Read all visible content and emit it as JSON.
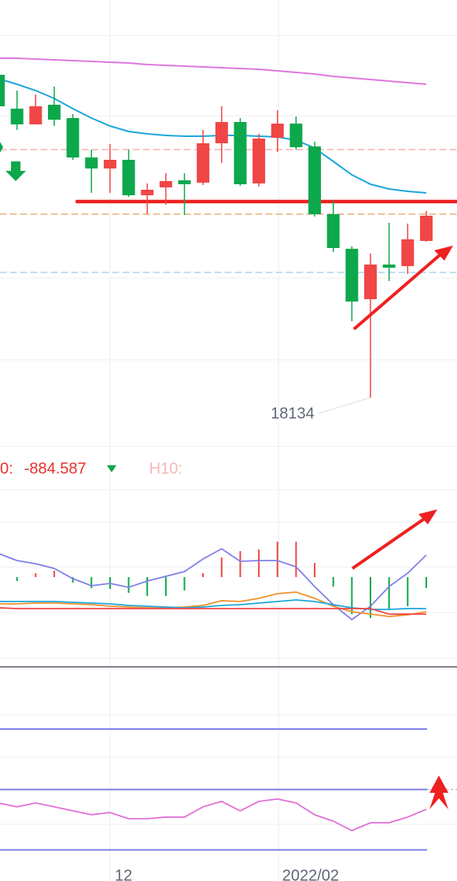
{
  "chart_data": [
    {
      "type": "candlestick",
      "ylim": [
        18014,
        19144
      ],
      "up_color": "#f04646",
      "down_color": "#0ca84b",
      "open": [
        18954,
        18868,
        18828,
        18878,
        18844,
        18744,
        18716,
        18738,
        18648,
        18668,
        18686,
        18680,
        18780,
        18834,
        18678,
        18794,
        18830,
        18772,
        18600,
        18512,
        18384,
        18472,
        18468,
        18532
      ],
      "high": [
        18964,
        18914,
        18904,
        18924,
        18854,
        18764,
        18778,
        18764,
        18678,
        18704,
        18704,
        18814,
        18874,
        18844,
        18804,
        18864,
        18848,
        18784,
        18634,
        18518,
        18500,
        18578,
        18576,
        18608
      ],
      "low": [
        18864,
        18814,
        18828,
        18824,
        18738,
        18654,
        18654,
        18644,
        18600,
        18624,
        18598,
        18674,
        18730,
        18672,
        18670,
        18758,
        18764,
        18594,
        18504,
        18328,
        18134,
        18430,
        18448,
        18530
      ],
      "close": [
        18874,
        18828,
        18874,
        18840,
        18744,
        18716,
        18738,
        18648,
        18662,
        18684,
        18676,
        18780,
        18834,
        18676,
        18792,
        18830,
        18770,
        18600,
        18514,
        18378,
        18472,
        18464,
        18536,
        18596
      ],
      "series": [
        {
          "color": "#de78de",
          "values": [
            18996,
            18996,
            18994,
            18992,
            18990,
            18988,
            18986,
            18984,
            18980,
            18978,
            18976,
            18974,
            18972,
            18970,
            18968,
            18964,
            18960,
            18956,
            18950,
            18946,
            18942,
            18938,
            18934,
            18930
          ]
        },
        {
          "color": "#1ea6dc",
          "values": [
            18944,
            18930,
            18914,
            18894,
            18868,
            18844,
            18824,
            18810,
            18804,
            18800,
            18798,
            18798,
            18800,
            18800,
            18798,
            18796,
            18788,
            18768,
            18734,
            18700,
            18676,
            18664,
            18658,
            18654
          ]
        }
      ],
      "levels": [
        {
          "value": 18764,
          "color": "#f2a4a4",
          "dashed": true
        },
        {
          "value": 18600,
          "color": "#e0a060",
          "dashed": true
        },
        {
          "value": 18452,
          "color": "#9ccbe8",
          "dashed": true
        },
        {
          "value": 18632,
          "color": "#ee2020",
          "dashed": false
        }
      ]
    },
    {
      "type": "macd",
      "ylim": [
        -107,
        108
      ],
      "header": [
        {
          "label": "0:",
          "value": -884.587,
          "color": "#e8322d"
        },
        {
          "label": "H10:",
          "color": "#f6b7b7"
        }
      ],
      "series": [
        {
          "kind": "bar",
          "values": [
            null,
            -5,
            5,
            8,
            -7,
            -14,
            -15,
            -20,
            -24,
            -24,
            -17,
            5,
            25,
            33,
            35,
            45,
            45,
            18,
            -12,
            -47,
            -52,
            -42,
            -37,
            -14
          ]
        },
        {
          "kind": "line",
          "color": "#8080e8",
          "values": [
            30,
            21,
            17,
            11,
            -2,
            -11,
            -8,
            -13,
            -5,
            1,
            7,
            23,
            36,
            20,
            21,
            21,
            13,
            -12,
            -35,
            -54,
            -37,
            -12,
            5,
            28
          ]
        },
        {
          "kind": "line",
          "color": "#f0902c",
          "values": [
            -34,
            -34,
            -33,
            -33,
            -34,
            -35,
            -37,
            -38,
            -39,
            -39,
            -38,
            -36,
            -30,
            -31,
            -27,
            -21,
            -19,
            -27,
            -37,
            -44,
            -47,
            -50,
            -48,
            -44
          ]
        },
        {
          "kind": "line",
          "color": "#1ea6dc",
          "values": [
            -31,
            -31,
            -31,
            -31,
            -32,
            -33,
            -34,
            -36,
            -37,
            -38,
            -39,
            -38,
            -36,
            -35,
            -33,
            -31,
            -29,
            -31,
            -35,
            -39,
            -41,
            -41,
            -40,
            -40
          ]
        },
        {
          "kind": "line",
          "color": "#f04646",
          "values": [
            -39,
            -40,
            -40,
            -40,
            -40,
            -40,
            -40,
            -40,
            -40,
            -40,
            -40,
            -40,
            -40,
            -40,
            -40,
            -40,
            -40,
            -40,
            -40,
            -40,
            -40,
            -47,
            -47,
            -47
          ]
        }
      ]
    },
    {
      "type": "oscillator",
      "ylim": [
        12,
        98
      ],
      "levels": [
        80,
        50,
        20
      ],
      "level_color": "#8080e8",
      "categories": [
        null,
        null,
        null,
        null,
        null,
        null,
        "12",
        null,
        null,
        null,
        null,
        null,
        null,
        null,
        null,
        "2022/02",
        null,
        null,
        null,
        null,
        null,
        null,
        null,
        null
      ],
      "series": [
        {
          "color": "#e070d8",
          "values": [
            43.3,
            41.4,
            43.3,
            41.4,
            39.4,
            37.5,
            38.6,
            35.5,
            35.5,
            36.3,
            36.3,
            41.4,
            44.1,
            39.4,
            44.1,
            45.3,
            43.3,
            37.5,
            34.3,
            29.6,
            33.5,
            33.5,
            36.3,
            40.2
          ]
        }
      ]
    }
  ]
}
